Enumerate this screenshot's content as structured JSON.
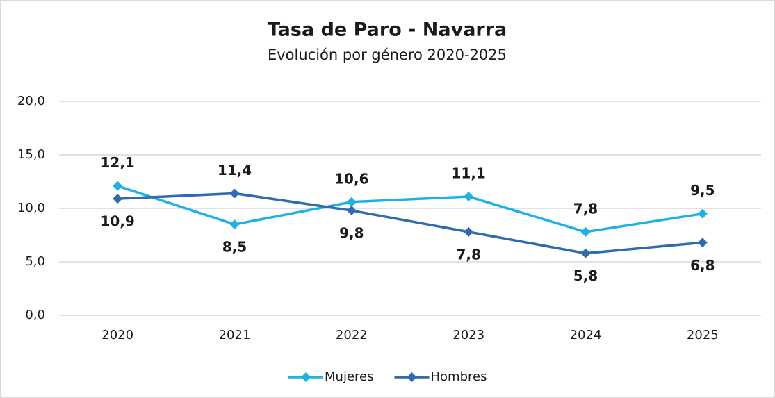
{
  "chart_data": {
    "type": "line",
    "title": "Tasa de Paro - Navarra",
    "subtitle": "Evolución por género 2020-2025",
    "categories": [
      "2020",
      "2021",
      "2022",
      "2023",
      "2024",
      "2025"
    ],
    "series": [
      {
        "name": "Mujeres",
        "color": "#1eb1e7",
        "values": [
          12.1,
          8.5,
          10.6,
          11.1,
          7.8,
          9.5
        ],
        "value_labels": [
          "12,1",
          "8,5",
          "10,6",
          "11,1",
          "7,8",
          "9,5"
        ]
      },
      {
        "name": "Hombres",
        "color": "#2e6bb0",
        "values": [
          10.9,
          11.4,
          9.8,
          7.8,
          5.8,
          6.8
        ],
        "value_labels": [
          "10,9",
          "11,4",
          "9,8",
          "7,8",
          "5,8",
          "6,8"
        ]
      }
    ],
    "ylim": [
      0,
      20
    ],
    "yticks": [
      {
        "value": 0,
        "label": "0,0"
      },
      {
        "value": 5,
        "label": "5,0"
      },
      {
        "value": 10,
        "label": "10,0"
      },
      {
        "value": 15,
        "label": "15,0"
      },
      {
        "value": 20,
        "label": "20,0"
      }
    ],
    "grid": true,
    "legend": "bottom"
  }
}
